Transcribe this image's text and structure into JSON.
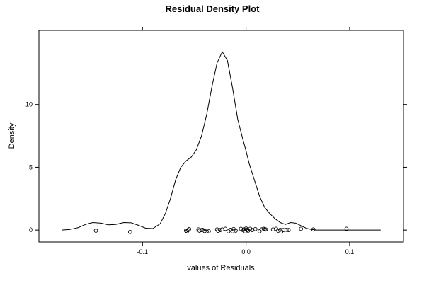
{
  "chart_data": {
    "type": "line",
    "title": "Residual Density Plot",
    "xlabel": "values of Residuals",
    "ylabel": "Density",
    "xlim": [
      -0.2,
      0.152
    ],
    "ylim": [
      -0.95,
      15.9
    ],
    "x_ticks": [
      -0.1,
      0.0,
      0.1
    ],
    "x_tick_labels": [
      "-0.1",
      "0.0",
      "0.1"
    ],
    "y_ticks": [
      0,
      5,
      10
    ],
    "y_tick_labels": [
      "0",
      "5",
      "10"
    ],
    "grid": false,
    "legend": "none",
    "series": [
      {
        "style": "line",
        "x": [
          -0.178,
          -0.17,
          -0.162,
          -0.155,
          -0.148,
          -0.14,
          -0.133,
          -0.126,
          -0.118,
          -0.111,
          -0.104,
          -0.097,
          -0.09,
          -0.083,
          -0.078,
          -0.073,
          -0.068,
          -0.063,
          -0.058,
          -0.053,
          -0.048,
          -0.043,
          -0.038,
          -0.033,
          -0.028,
          -0.023,
          -0.018,
          -0.013,
          -0.008,
          -0.003,
          0.0,
          0.003,
          0.008,
          0.013,
          0.018,
          0.023,
          0.028,
          0.033,
          0.038,
          0.043,
          0.048,
          0.053,
          0.058,
          0.063,
          0.068,
          0.073,
          0.078,
          0.083,
          0.09,
          0.097,
          0.104,
          0.111,
          0.118,
          0.125,
          0.13
        ],
        "y": [
          0.0,
          0.05,
          0.2,
          0.45,
          0.6,
          0.55,
          0.42,
          0.45,
          0.6,
          0.58,
          0.38,
          0.15,
          0.12,
          0.5,
          1.3,
          2.5,
          4.0,
          5.0,
          5.5,
          5.8,
          6.4,
          7.5,
          9.2,
          11.4,
          13.3,
          14.2,
          13.5,
          11.3,
          8.8,
          7.2,
          6.3,
          5.3,
          4.0,
          2.7,
          1.8,
          1.3,
          0.9,
          0.6,
          0.45,
          0.6,
          0.55,
          0.35,
          0.15,
          0.05,
          0.0,
          0.0,
          0.0,
          0.0,
          0.0,
          0.0,
          0.0,
          0.0,
          0.0,
          0.0,
          0.0
        ]
      },
      {
        "style": "points",
        "x": [
          -0.145,
          -0.112,
          -0.058,
          -0.057,
          -0.056,
          -0.055,
          -0.046,
          -0.045,
          -0.043,
          -0.042,
          -0.04,
          -0.038,
          -0.036,
          -0.028,
          -0.027,
          -0.025,
          -0.023,
          -0.02,
          -0.017,
          -0.015,
          -0.013,
          -0.012,
          -0.01,
          -0.005,
          -0.003,
          -0.002,
          -0.001,
          0.0,
          0.001,
          0.002,
          0.004,
          0.006,
          0.009,
          0.013,
          0.015,
          0.017,
          0.018,
          0.019,
          0.026,
          0.029,
          0.031,
          0.033,
          0.034,
          0.036,
          0.039,
          0.041,
          0.053,
          0.065,
          0.097
        ],
        "y": [
          -0.05,
          -0.15,
          -0.05,
          -0.1,
          0.0,
          0.08,
          0.05,
          -0.05,
          0.0,
          0.02,
          -0.08,
          -0.12,
          -0.1,
          0.05,
          -0.06,
          0.0,
          0.05,
          0.1,
          -0.1,
          0.02,
          -0.1,
          0.08,
          -0.05,
          0.1,
          0.0,
          0.05,
          -0.1,
          0.12,
          0.02,
          -0.05,
          0.1,
          0.0,
          0.08,
          -0.1,
          0.05,
          0.1,
          0.05,
          0.05,
          0.05,
          0.1,
          -0.05,
          0.02,
          -0.12,
          0.0,
          0.02,
          0.0,
          0.1,
          0.05,
          0.1
        ]
      }
    ]
  }
}
